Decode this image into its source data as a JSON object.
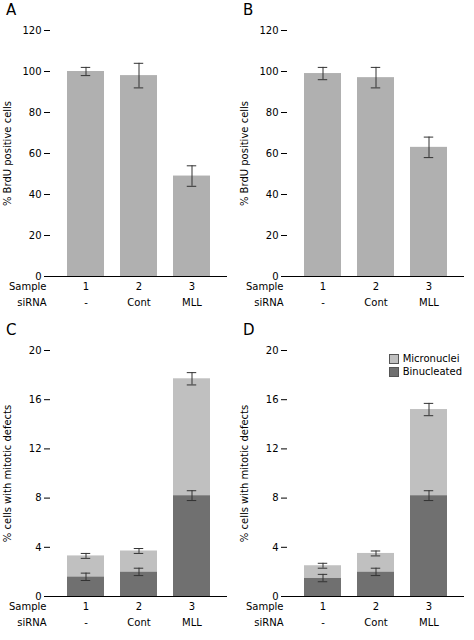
{
  "chart_data": [
    {
      "type": "bar",
      "title": "A",
      "categories": [
        "1",
        "2",
        "3"
      ],
      "category_label": "Sample",
      "subcategories": [
        "-",
        "Cont",
        "MLL"
      ],
      "subcategory_label": "siRNA",
      "values": [
        100,
        98,
        49
      ],
      "errors": [
        2,
        6,
        5
      ],
      "color": "#b0b0b0",
      "ylabel": "% BrdU positive cells",
      "ylim": [
        0,
        120
      ],
      "yticks": [
        0,
        20,
        40,
        60,
        80,
        100,
        120
      ]
    },
    {
      "type": "bar",
      "title": "B",
      "categories": [
        "1",
        "2",
        "3"
      ],
      "category_label": "Sample",
      "subcategories": [
        "-",
        "Cont",
        "MLL"
      ],
      "subcategory_label": "siRNA",
      "values": [
        99,
        97,
        63
      ],
      "errors": [
        3,
        5,
        5
      ],
      "color": "#b0b0b0",
      "ylabel": "% BrdU positive cells",
      "ylim": [
        0,
        120
      ],
      "yticks": [
        0,
        20,
        40,
        60,
        80,
        100,
        120
      ]
    },
    {
      "type": "bar",
      "title": "C",
      "stacked": true,
      "categories": [
        "1",
        "2",
        "3"
      ],
      "category_label": "Sample",
      "subcategories": [
        "-",
        "Cont",
        "MLL"
      ],
      "subcategory_label": "siRNA",
      "series": [
        {
          "color": "#707070",
          "values": [
            1.6,
            2.0,
            8.2
          ],
          "errors": [
            0.3,
            0.3,
            0.4
          ]
        },
        {
          "color": "#c0c0c0",
          "values": [
            1.7,
            1.7,
            9.5
          ],
          "errors": [
            0.2,
            0.2,
            0.5
          ]
        }
      ],
      "ylabel": "% cells with mitotic defects",
      "ylim": [
        0,
        20
      ],
      "yticks": [
        0,
        4,
        8,
        12,
        16,
        20
      ]
    },
    {
      "type": "bar",
      "title": "D",
      "stacked": true,
      "legend": "upper right",
      "categories": [
        "1",
        "2",
        "3"
      ],
      "category_label": "Sample",
      "subcategories": [
        "-",
        "Cont",
        "MLL"
      ],
      "subcategory_label": "siRNA",
      "series": [
        {
          "name": "Binucleated",
          "color": "#707070",
          "values": [
            1.5,
            2.0,
            8.2
          ],
          "errors": [
            0.3,
            0.3,
            0.4
          ]
        },
        {
          "name": "Micronuclei",
          "color": "#c0c0c0",
          "values": [
            1.0,
            1.5,
            7.0
          ],
          "errors": [
            0.2,
            0.2,
            0.5
          ]
        }
      ],
      "ylabel": "% cells with mitotic defects",
      "ylim": [
        0,
        20
      ],
      "yticks": [
        0,
        4,
        8,
        12,
        16,
        20
      ]
    }
  ]
}
